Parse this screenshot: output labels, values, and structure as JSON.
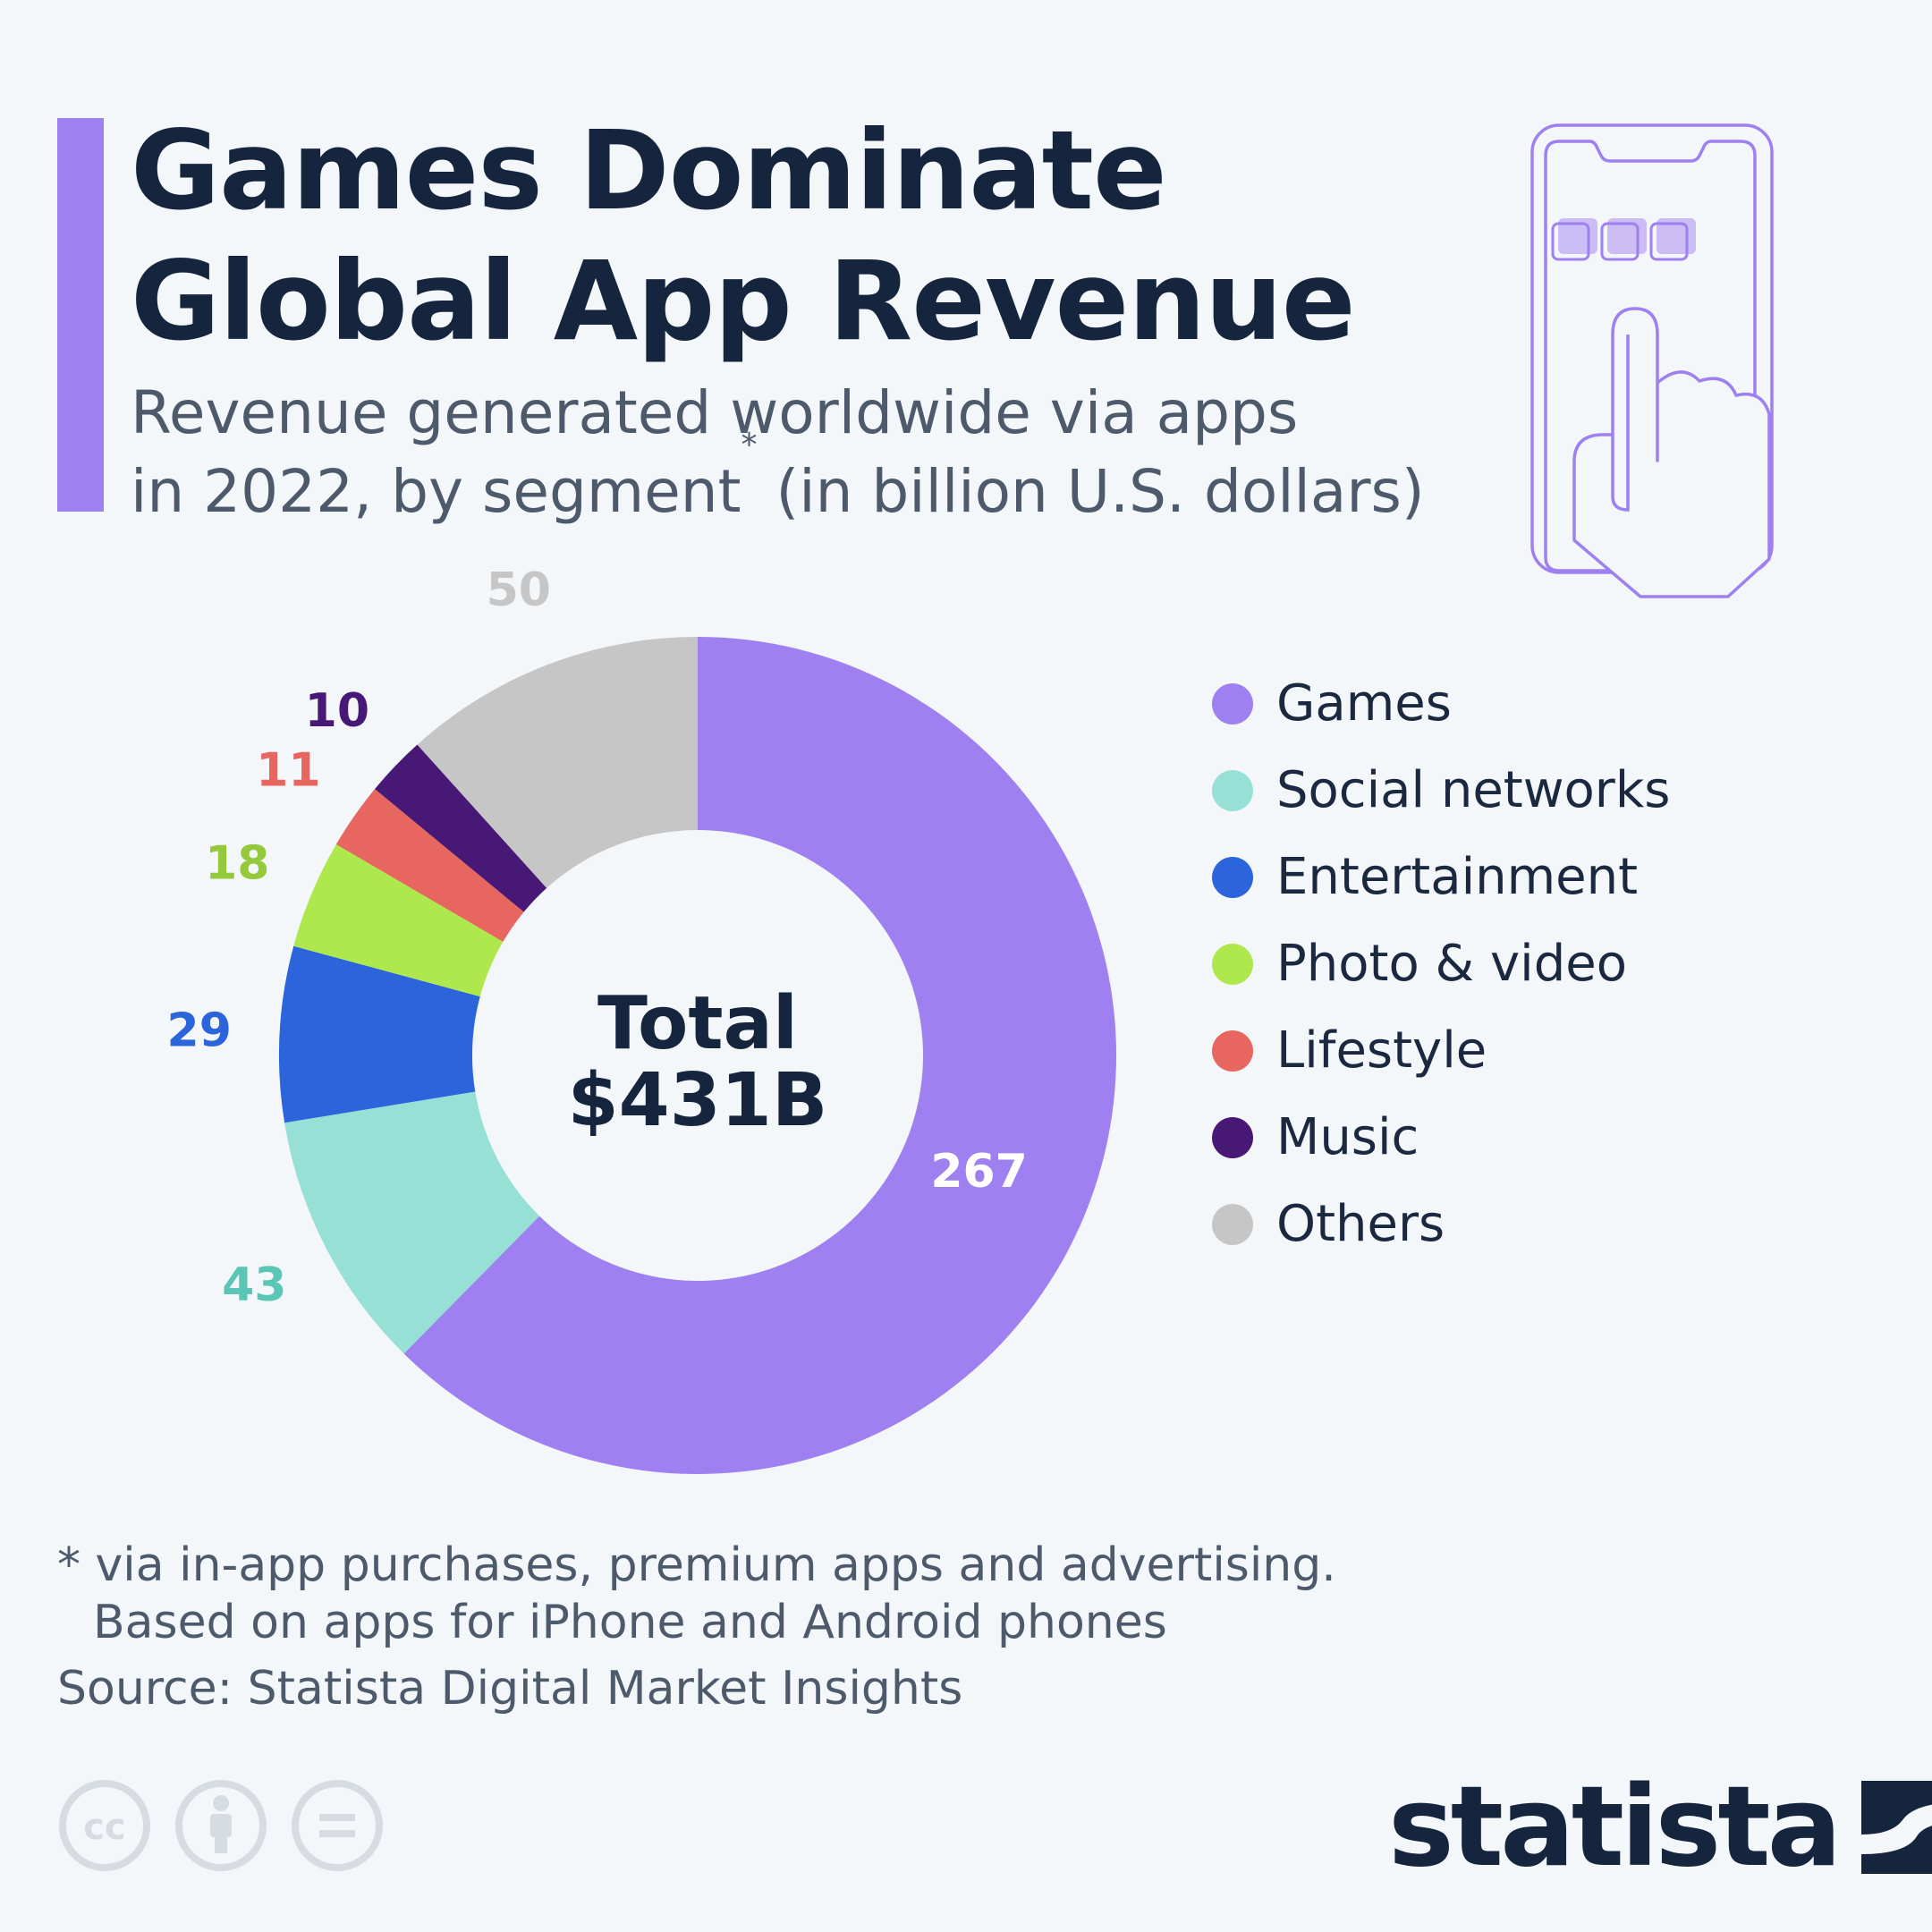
{
  "title": {
    "line1": "Games Dominate",
    "line2": "Global App Revenue"
  },
  "subtitle": {
    "line1": "Revenue generated worldwide via apps",
    "line2_main": "in 2022, by segment",
    "line2_marker": "*",
    "line2_unit": " (in billion U.S. dollars)"
  },
  "center_label": {
    "line1": "Total",
    "line2": "$431B"
  },
  "chart_data": {
    "type": "pie",
    "variant": "donut",
    "title": "Games Dominate Global App Revenue",
    "unit": "billion U.S. dollars",
    "total_label": "$431B",
    "categories": [
      "Games",
      "Social networks",
      "Entertainment",
      "Photo & video",
      "Lifestyle",
      "Music",
      "Others"
    ],
    "values": [
      267,
      43,
      29,
      18,
      11,
      10,
      50
    ],
    "colors": [
      "#9e80f0",
      "#97e0d6",
      "#2c64dc",
      "#afe84d",
      "#e7665f",
      "#471875",
      "#c6c6c6"
    ],
    "label_colors": [
      "#ffffff",
      "#5cc6b6",
      "#2c64dc",
      "#93c93b",
      "#e7665f",
      "#471875",
      "#c6c6c6"
    ],
    "legend_position": "right"
  },
  "footnote": {
    "line1": "* via in-app purchases, premium apps and advertising.",
    "line2": "Based on apps for iPhone and Android phones"
  },
  "source": "Source: Statista Digital Market Insights",
  "license_icons": [
    "cc-icon",
    "attribution-icon",
    "no-derivatives-icon"
  ],
  "brand": {
    "name": "statista",
    "color": "#16253e"
  },
  "accent_color": "#9e80f0"
}
